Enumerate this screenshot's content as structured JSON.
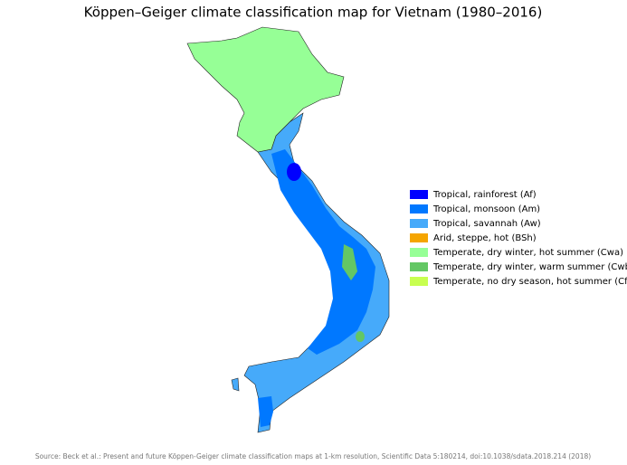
{
  "title": "Köppen–Geiger climate classification map for Vietnam (1980–2016)",
  "legend": [
    {
      "label": "Tropical, rainforest (Af)",
      "color": "#0000ff"
    },
    {
      "label": "Tropical, monsoon (Am)",
      "color": "#0078ff"
    },
    {
      "label": "Tropical, savannah (Aw)",
      "color": "#46aafa"
    },
    {
      "label": "Arid, steppe, hot (BSh)",
      "color": "#f5a500"
    },
    {
      "label": "Temperate, dry winter, hot summer (Cwa)",
      "color": "#96ff96"
    },
    {
      "label": "Temperate, dry winter, warm summer (Cwb)",
      "color": "#63c764"
    },
    {
      "label": "Temperate, no dry season, hot summer (Cfa)",
      "color": "#c8ff50"
    }
  ],
  "source": "Source: Beck et al.: Present and future Köppen-Geiger climate classification maps at 1-km resolution, Scientific Data 5:180214, doi:10.1038/sdata.2018.214 (2018)"
}
